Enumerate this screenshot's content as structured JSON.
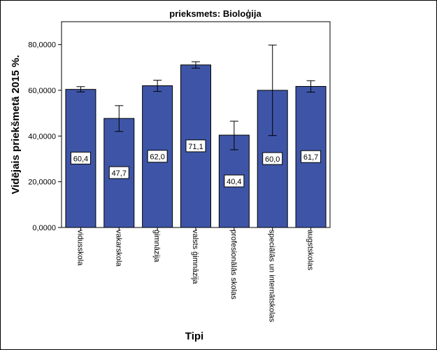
{
  "chart_data": {
    "type": "bar",
    "title": "prieksmets: Bioloģija",
    "xlabel": "Tipi",
    "ylabel": "Vidējais priekšmetā 2015 %.",
    "ylim": [
      0,
      90000
    ],
    "yticks": [
      0,
      20000,
      40000,
      60000,
      80000
    ],
    "ytick_labels": [
      "0,0000",
      "20,0000",
      "40,0000",
      "60,0000",
      "80,0000"
    ],
    "categories": [
      "vidusskola",
      "vakarskola",
      "ģimnāzija",
      "valsts ģimnāzija",
      "profesionālās skolas",
      "speciālās un internātskolas",
      "augstskolas"
    ],
    "values": [
      60400,
      47700,
      62000,
      71100,
      40400,
      60000,
      61700
    ],
    "error_low": [
      59300,
      42000,
      59500,
      69700,
      34000,
      40200,
      59200
    ],
    "error_high": [
      61600,
      53300,
      64400,
      72500,
      46500,
      79800,
      64200
    ],
    "data_labels": [
      "60,4",
      "47,7",
      "62,0",
      "71,1",
      "40,4",
      "60,0",
      "61,7"
    ],
    "bar_color": "#3e55a7",
    "grid": false,
    "legend": "none"
  }
}
